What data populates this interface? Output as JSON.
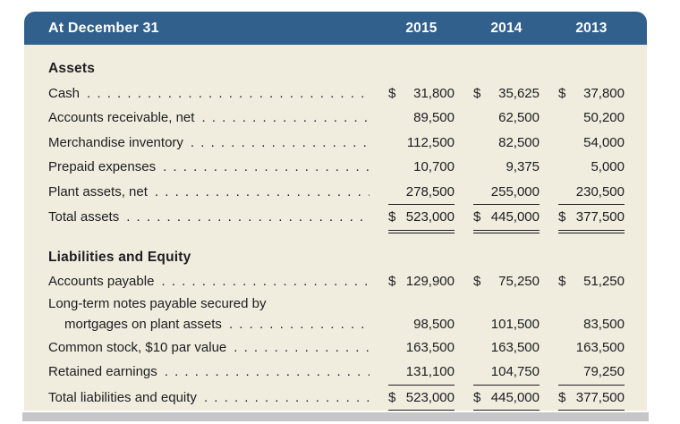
{
  "header": {
    "title": "At December 31",
    "years": [
      "2015",
      "2014",
      "2013"
    ]
  },
  "colors": {
    "header_bg": "#31608d",
    "header_text": "#ffffff",
    "body_bg": "#f0edde",
    "text": "#1d1d22",
    "bottom_bar": "#c6c6c8",
    "page_bg": "#ffffff"
  },
  "sections": [
    {
      "heading": "Assets",
      "rows": [
        {
          "label": "Cash",
          "dollar": true,
          "values": [
            "31,800",
            "35,625",
            "37,800"
          ],
          "underline": "none"
        },
        {
          "label": "Accounts receivable, net",
          "dollar": false,
          "values": [
            "89,500",
            "62,500",
            "50,200"
          ],
          "underline": "none"
        },
        {
          "label": "Merchandise inventory",
          "dollar": false,
          "values": [
            "112,500",
            "82,500",
            "54,000"
          ],
          "underline": "none"
        },
        {
          "label": "Prepaid expenses",
          "dollar": false,
          "values": [
            "10,700",
            "9,375",
            "5,000"
          ],
          "underline": "none"
        },
        {
          "label": "Plant assets, net",
          "dollar": false,
          "values": [
            "278,500",
            "255,000",
            "230,500"
          ],
          "underline": "single"
        },
        {
          "label": "Total assets",
          "dollar": true,
          "values": [
            "523,000",
            "445,000",
            "377,500"
          ],
          "underline": "double"
        }
      ]
    },
    {
      "heading": "Liabilities and Equity",
      "rows": [
        {
          "label": "Accounts payable",
          "dollar": true,
          "values": [
            "129,900",
            "75,250",
            "51,250"
          ],
          "underline": "none"
        },
        {
          "label": "Long-term notes payable secured by",
          "label2": "mortgages on plant assets",
          "dollar": false,
          "values": [
            "98,500",
            "101,500",
            "83,500"
          ],
          "underline": "none"
        },
        {
          "label": "Common stock, $10 par value",
          "dollar": false,
          "values": [
            "163,500",
            "163,500",
            "163,500"
          ],
          "underline": "none"
        },
        {
          "label": "Retained earnings",
          "dollar": false,
          "values": [
            "131,100",
            "104,750",
            "79,250"
          ],
          "underline": "single"
        },
        {
          "label": "Total liabilities and equity",
          "dollar": true,
          "values": [
            "523,000",
            "445,000",
            "377,500"
          ],
          "underline": "double"
        }
      ]
    }
  ]
}
